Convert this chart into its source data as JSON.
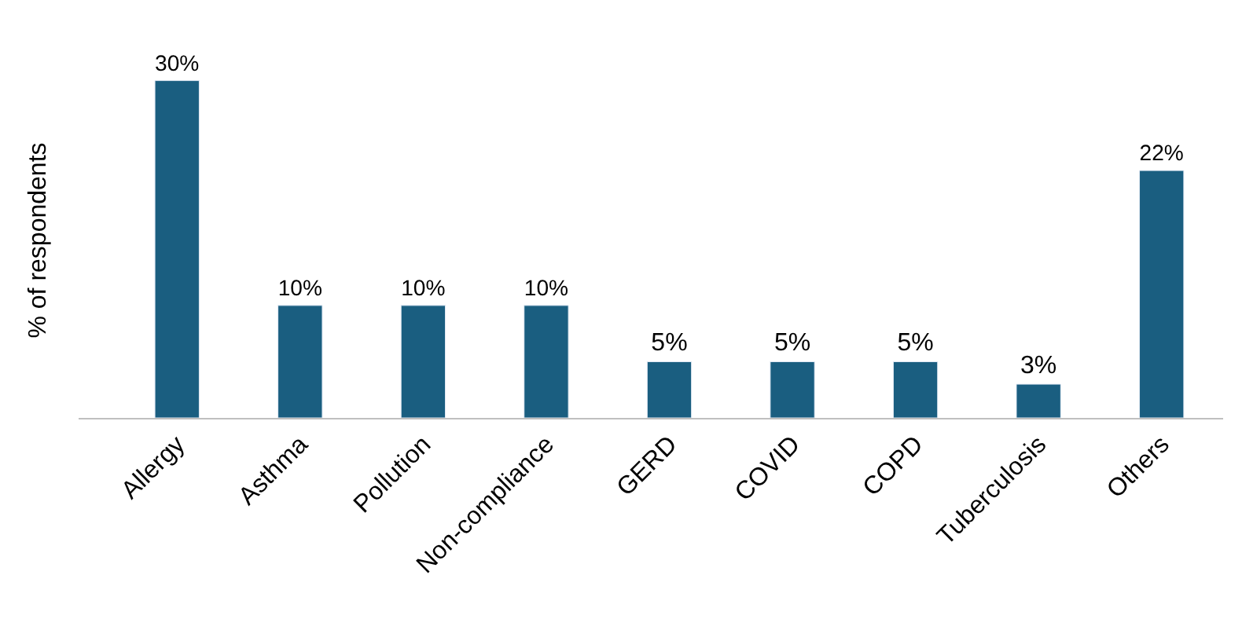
{
  "chart_data": {
    "type": "bar",
    "ylabel": "% of respondents",
    "categories": [
      "Allergy",
      "Asthma",
      "Pollution",
      "Non-compliance",
      "GERD",
      "COVID",
      "COPD",
      "Tuberculosis",
      "Others"
    ],
    "values": [
      30,
      10,
      10,
      10,
      5,
      5,
      5,
      3,
      22
    ],
    "value_labels": [
      "30%",
      "10%",
      "10%",
      "10%",
      "5%",
      "5%",
      "5%",
      "3%",
      "22%"
    ],
    "color": "#1a5e80"
  }
}
